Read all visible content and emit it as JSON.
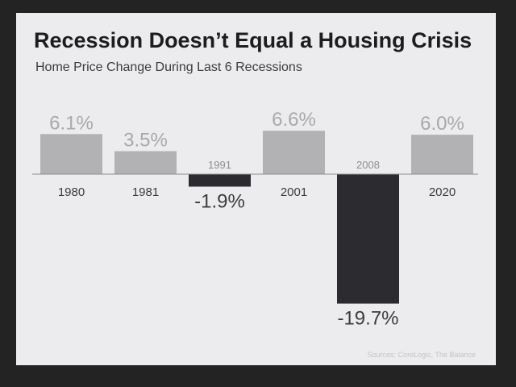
{
  "header": {
    "title": "Recession Doesn’t Equal a Housing Crisis",
    "subtitle": "Home Price Change During Last 6 Recessions"
  },
  "footer": {
    "source": "Sources: CoreLogic, The Balance"
  },
  "colors": {
    "background": "#ececee",
    "positive_bar": "#b2b2b5",
    "negative_bar": "#2c2c30",
    "positive_label": "#a9a9ac",
    "negative_label": "#3c3c40",
    "year_label": "#3c3c40",
    "year_label_muted": "#8e8e92",
    "baseline": "#8c8c90"
  },
  "chart_data": {
    "type": "bar",
    "categories": [
      "1980",
      "1981",
      "1991",
      "2001",
      "2008",
      "2020"
    ],
    "values": [
      6.1,
      3.5,
      -1.9,
      6.6,
      -19.7,
      6.0
    ],
    "value_labels": [
      "6.1%",
      "3.5%",
      "-1.9%",
      "6.6%",
      "-19.7%",
      "6.0%"
    ],
    "title": "",
    "xlabel": "",
    "ylabel": "",
    "ylim": [
      -19.7,
      6.6
    ],
    "grid": false,
    "legend": "none"
  }
}
